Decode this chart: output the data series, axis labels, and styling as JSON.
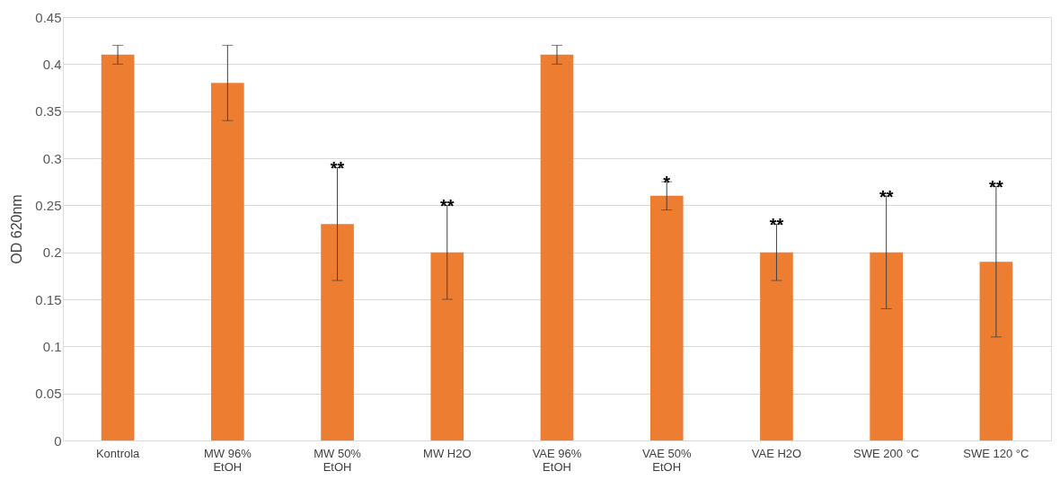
{
  "chart_data": {
    "type": "bar",
    "ylabel": "OD 620nm",
    "categories": [
      "Kontrola",
      "MW 96% EtOH",
      "MW 50% EtOH",
      "MW H2O",
      "VAE 96% EtOH",
      "VAE 50% EtOH",
      "VAE H2O",
      "SWE 200 °C",
      "SWE 120 °C"
    ],
    "values": [
      0.41,
      0.38,
      0.23,
      0.2,
      0.41,
      0.26,
      0.2,
      0.2,
      0.19
    ],
    "errors": [
      [
        0.4,
        0.42
      ],
      [
        0.34,
        0.42
      ],
      [
        0.17,
        0.29
      ],
      [
        0.15,
        0.25
      ],
      [
        0.4,
        0.42
      ],
      [
        0.245,
        0.275
      ],
      [
        0.17,
        0.23
      ],
      [
        0.14,
        0.26
      ],
      [
        0.11,
        0.27
      ]
    ],
    "color": "#ed7d31",
    "ylim": [
      0,
      0.45
    ],
    "yticks": [
      0,
      0.05,
      0.1,
      0.15,
      0.2,
      0.25,
      0.3,
      0.35,
      0.4,
      0.45
    ],
    "grid": "y",
    "annotations": [
      {
        "text": "**",
        "x": "MW 50% EtOH",
        "y": 0.29
      },
      {
        "text": "**",
        "x": "MW H2O",
        "y": 0.25
      },
      {
        "text": "*",
        "x": "VAE 50% EtOH",
        "y": 0.275
      },
      {
        "text": "**",
        "x": "VAE H2O",
        "y": 0.23
      },
      {
        "text": "**",
        "x": "SWE 200 °C",
        "y": 0.26
      },
      {
        "text": "**",
        "x": "SWE 120 °C",
        "y": 0.27
      }
    ]
  }
}
